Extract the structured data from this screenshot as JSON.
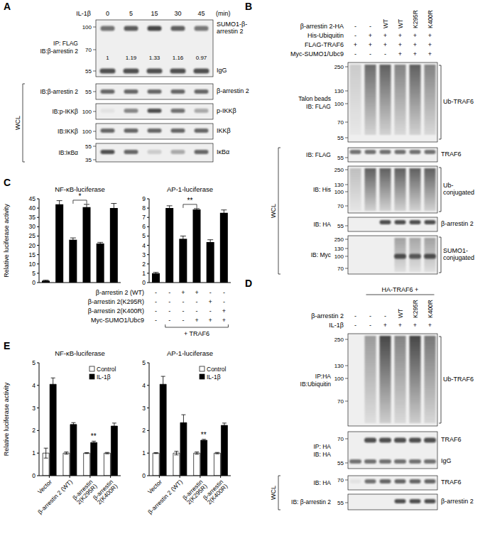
{
  "panels": {
    "A": {
      "label": "A",
      "treatment": "IL-1β",
      "times": [
        0,
        5,
        15,
        30,
        45
      ],
      "time_unit": "(min)",
      "blots": [
        {
          "left": [
            "IP: FLAG",
            "IB:β-arrestin 2"
          ],
          "markers": [
            100,
            70,
            55
          ],
          "bands": [
            "SUMO1-β-arrestin 2",
            "IgG"
          ],
          "quantification": [
            1,
            1.19,
            1.33,
            1.16,
            0.97
          ]
        }
      ],
      "wcl_label": "WCL",
      "wcl_blots": [
        {
          "left": [
            "IB:β-arrestin 2"
          ],
          "markers": [
            55
          ],
          "bands": [
            "β-arrestin 2"
          ]
        },
        {
          "left": [
            "IB:p-IKKβ"
          ],
          "markers": [
            100
          ],
          "bands": [
            "p-IKKβ"
          ]
        },
        {
          "left": [
            "IB:IKKβ"
          ],
          "markers": [
            100
          ],
          "bands": [
            "IKKβ"
          ]
        },
        {
          "left": [
            "IB:IκBα"
          ],
          "markers": [
            55,
            35
          ],
          "bands": [
            "IκBα"
          ]
        }
      ]
    },
    "B": {
      "label": "B",
      "conditions": [
        {
          "label": "β-arrestin 2-HA",
          "values": [
            "-",
            "-",
            "WT",
            "WT",
            "K295R",
            "K400R"
          ]
        },
        {
          "label": "His-Ubiquitin",
          "values": [
            "-",
            "+",
            "+",
            "+",
            "+",
            "+"
          ]
        },
        {
          "label": "FLAG-TRAF6",
          "values": [
            "+",
            "+",
            "+",
            "+",
            "+",
            "+"
          ]
        },
        {
          "label": "Myc-SUMO1/Ubc9",
          "values": [
            "-",
            "-",
            "-",
            "+",
            "+",
            "+"
          ]
        }
      ],
      "blots": [
        {
          "left": [
            "Talon beads",
            "IB: FLAG"
          ],
          "markers": [
            250,
            130,
            100,
            70,
            55
          ],
          "bands": [
            "Ub-TRAF6"
          ]
        }
      ],
      "wcl_label": "WCL",
      "wcl_blots": [
        {
          "left": [
            "IB: FLAG"
          ],
          "markers": [
            55
          ],
          "bands": [
            "TRAF6"
          ]
        },
        {
          "left": [
            "IB: His"
          ],
          "markers": [
            250,
            130,
            100,
            70
          ],
          "bands": [
            "Ub-conjugated"
          ]
        },
        {
          "left": [
            "IB: HA"
          ],
          "markers": [
            55
          ],
          "bands": [
            "β-arrestin 2"
          ]
        },
        {
          "left": [
            "IB: Myc"
          ],
          "markers": [
            250,
            130,
            100,
            70
          ],
          "bands": [
            "SUMO1-conjugated"
          ]
        }
      ]
    },
    "C": {
      "label": "C",
      "conditions": [
        {
          "label": "β-arrestin 2 (WT)",
          "values": [
            "-",
            "-",
            "+",
            "+",
            "-",
            "-"
          ]
        },
        {
          "label": "β-arrestin 2(K295R)",
          "values": [
            "-",
            "-",
            "-",
            "-",
            "+",
            "-"
          ]
        },
        {
          "label": "β-arrestin 2(K400R)",
          "values": [
            "-",
            "-",
            "-",
            "-",
            "-",
            "+"
          ]
        },
        {
          "label": "Myc-SUMO1/Ubc9",
          "values": [
            "-",
            "-",
            "-",
            "+",
            "+",
            "+"
          ]
        }
      ],
      "bracket": {
        "text": "+ TRAF6",
        "from": 1,
        "to": 5
      }
    },
    "D": {
      "label": "D",
      "header": "HA-TRAF6 +",
      "conditions": [
        {
          "label": "β-arrestin 2",
          "values": [
            "-",
            "-",
            "-",
            "WT",
            "K295R",
            "K400R"
          ]
        },
        {
          "label": "IL-1β",
          "values": [
            "-",
            "-",
            "+",
            "+",
            "+",
            "+"
          ]
        }
      ],
      "blots": [
        {
          "left": [
            "IP:HA",
            "IB:Ubiquitin"
          ],
          "markers": [
            250,
            130,
            100,
            70
          ],
          "bands": [
            "Ub-TRAF6"
          ]
        },
        {
          "left": [
            "IP: HA",
            "IB: HA"
          ],
          "markers": [
            70,
            55
          ],
          "bands": [
            "TRAF6",
            "IgG"
          ]
        }
      ],
      "wcl_label": "WCL",
      "wcl_blots": [
        {
          "left": [
            "IB: HA"
          ],
          "markers": [
            70
          ],
          "bands": [
            "TRAF6"
          ]
        },
        {
          "left": [
            "IB: β-arrestin 2"
          ],
          "markers": [
            55
          ],
          "bands": [
            "β-arrestin 2"
          ]
        }
      ]
    },
    "E": {
      "label": "E"
    }
  },
  "chart_data": [
    {
      "type": "bar",
      "title": "NF-κB-luciferase",
      "y_label": "Relative luciferase activity",
      "categories": [
        null,
        null,
        null,
        null,
        null,
        null
      ],
      "values": [
        1,
        42,
        23,
        40.5,
        21,
        40
      ],
      "errors": [
        0.3,
        2,
        1,
        1.5,
        0.6,
        2.5
      ],
      "color": "#000000",
      "ylim": [
        0,
        45
      ],
      "yticks": [
        0,
        5,
        10,
        15,
        20,
        25,
        30,
        35,
        40,
        45
      ],
      "annotations": [
        {
          "text": "*",
          "bars": [
            2,
            3
          ]
        }
      ]
    },
    {
      "type": "bar",
      "title": "AP-1-luciferase",
      "categories": [
        null,
        null,
        null,
        null,
        null,
        null
      ],
      "values": [
        1,
        8,
        4.7,
        7.85,
        4.35,
        7.5
      ],
      "errors": [
        0.1,
        0.25,
        0.3,
        0.1,
        0.25,
        0.3
      ],
      "color": "#000000",
      "ylim": [
        0,
        9
      ],
      "yticks": [
        0,
        1,
        2,
        3,
        4,
        5,
        6,
        7,
        8,
        9
      ],
      "annotations": [
        {
          "text": "**",
          "bars": [
            2,
            3
          ]
        }
      ]
    },
    {
      "type": "bar",
      "title": "NF-κB-luciferase",
      "y_label": "Relative luciferase activity",
      "categories": [
        "Vector",
        "β-arrestin 2 (WT)",
        "β-arrestin 2(K295R)",
        "β-arrestin 2(K400R)"
      ],
      "series": [
        {
          "name": "Control",
          "color": "#ffffff",
          "values": [
            1,
            1,
            1,
            1
          ],
          "errors": [
            0.22,
            0.05,
            0.02,
            0.03
          ]
        },
        {
          "name": "IL-1β",
          "color": "#000000",
          "values": [
            4.05,
            2.27,
            1.47,
            2.2
          ],
          "errors": [
            0.28,
            0.08,
            0.06,
            0.13
          ]
        }
      ],
      "ylim": [
        0,
        5
      ],
      "yticks": [
        0,
        1,
        2,
        3,
        4,
        5
      ],
      "legend": "upper right",
      "annotations": [
        {
          "text": "**",
          "category": "β-arrestin 2(K295R)",
          "series": "IL-1β"
        }
      ]
    },
    {
      "type": "bar",
      "title": "AP-1-luciferase",
      "categories": [
        "Vector",
        "β-arrestin 2 (WT)",
        "β-arrestin 2(K295R)",
        "β-arrestin 2(K400R)"
      ],
      "series": [
        {
          "name": "Control",
          "color": "#ffffff",
          "values": [
            1,
            1,
            1,
            1
          ],
          "errors": [
            0.02,
            0.08,
            0.05,
            0.03
          ]
        },
        {
          "name": "IL-1β",
          "color": "#000000",
          "values": [
            4.05,
            2.35,
            1.57,
            2.23
          ],
          "errors": [
            0.35,
            0.35,
            0.04,
            0.1
          ]
        }
      ],
      "ylim": [
        0,
        5
      ],
      "yticks": [
        0,
        1,
        2,
        3,
        4,
        5
      ],
      "legend": "upper right",
      "annotations": [
        {
          "text": "**",
          "category": "β-arrestin 2(K295R)",
          "series": "IL-1β"
        }
      ]
    }
  ]
}
